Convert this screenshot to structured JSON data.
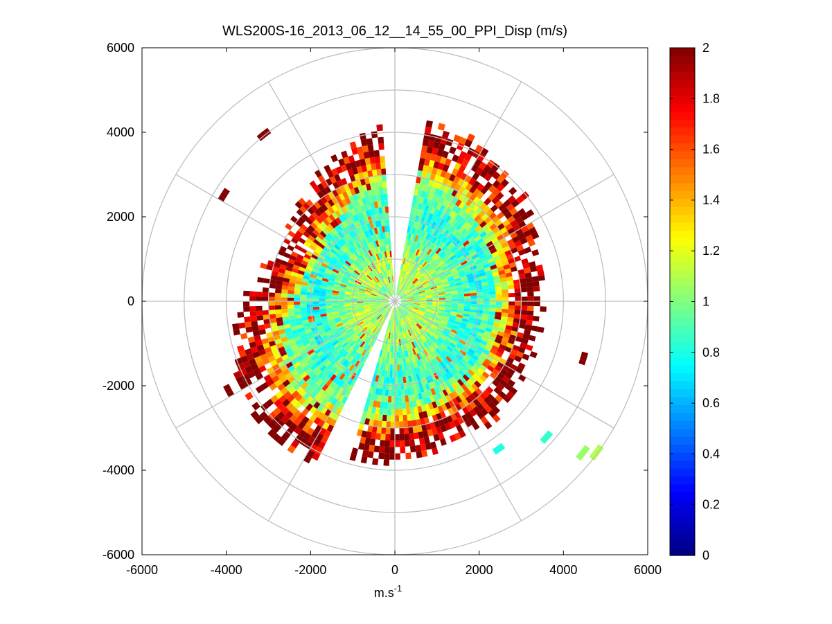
{
  "chart_data": {
    "type": "heatmap",
    "subtype": "polar-ppi-scan",
    "title": "WLS200S-16_2013_06_12__14_55_00_PPI_Disp (m/s)",
    "xlabel": "m.s-1",
    "xlabel_parts": {
      "base": "m.s",
      "superscript": "-1"
    },
    "ylabel": "",
    "xlim": [
      -6000,
      6000
    ],
    "ylim": [
      -6000,
      6000
    ],
    "xticks": [
      -6000,
      -4000,
      -2000,
      0,
      2000,
      4000,
      6000
    ],
    "yticks": [
      6000,
      4000,
      2000,
      0,
      -2000,
      -4000,
      -6000
    ],
    "xtick_labels": [
      "-6000",
      "-4000",
      "-2000",
      "0",
      "2000",
      "4000",
      "6000"
    ],
    "ytick_labels": [
      "6000",
      "4000",
      "2000",
      "0",
      "-2000",
      "-4000",
      "-6000"
    ],
    "polar_grid": {
      "ring_radii": [
        1000,
        2000,
        3000,
        4000,
        5000,
        6000
      ],
      "spoke_angles_deg": [
        0,
        30,
        60,
        90,
        120,
        150,
        180,
        210,
        240,
        270,
        300,
        330
      ],
      "color": "#bebebe"
    },
    "data_extent": {
      "max_range": 4300,
      "min_range": 150,
      "range_gate": 150,
      "azimuth_step_deg": 2
    },
    "data_gaps_deg_compass": [
      [
        -3,
        10
      ],
      [
        197,
        205
      ]
    ],
    "outlier_patches": [
      {
        "azimuth_deg": 125,
        "range": 5900,
        "value": 1.1
      },
      {
        "azimuth_deg": 127,
        "range": 5650,
        "value": 1.05
      },
      {
        "azimuth_deg": 130,
        "range": 4750,
        "value": 0.85
      },
      {
        "azimuth_deg": 143,
        "range": 4200,
        "value": 0.8
      },
      {
        "azimuth_deg": 300,
        "range": 4700,
        "value": 2.0
      },
      {
        "azimuth_deg": 320,
        "range": 4950,
        "value": 2.0
      },
      {
        "azimuth_deg": 105,
        "range": 4600,
        "value": 2.0
      },
      {
        "azimuth_deg": 240,
        "range": 4400,
        "value": 2.0
      }
    ],
    "value_distribution": "mostly 0.9–1.25 m/s (green/yellow) within ~3000 m, increasing to 1.6–2.0 m/s (red) at outer gates",
    "colorbar": {
      "colormap": "jet",
      "range": [
        0,
        2
      ],
      "ticks": [
        0,
        0.2,
        0.4,
        0.6,
        0.8,
        1,
        1.2,
        1.4,
        1.6,
        1.8,
        2
      ],
      "tick_labels": [
        "0",
        "0.2",
        "0.4",
        "0.6",
        "0.8",
        "1",
        "1.2",
        "1.4",
        "1.6",
        "1.8",
        "2"
      ]
    }
  }
}
